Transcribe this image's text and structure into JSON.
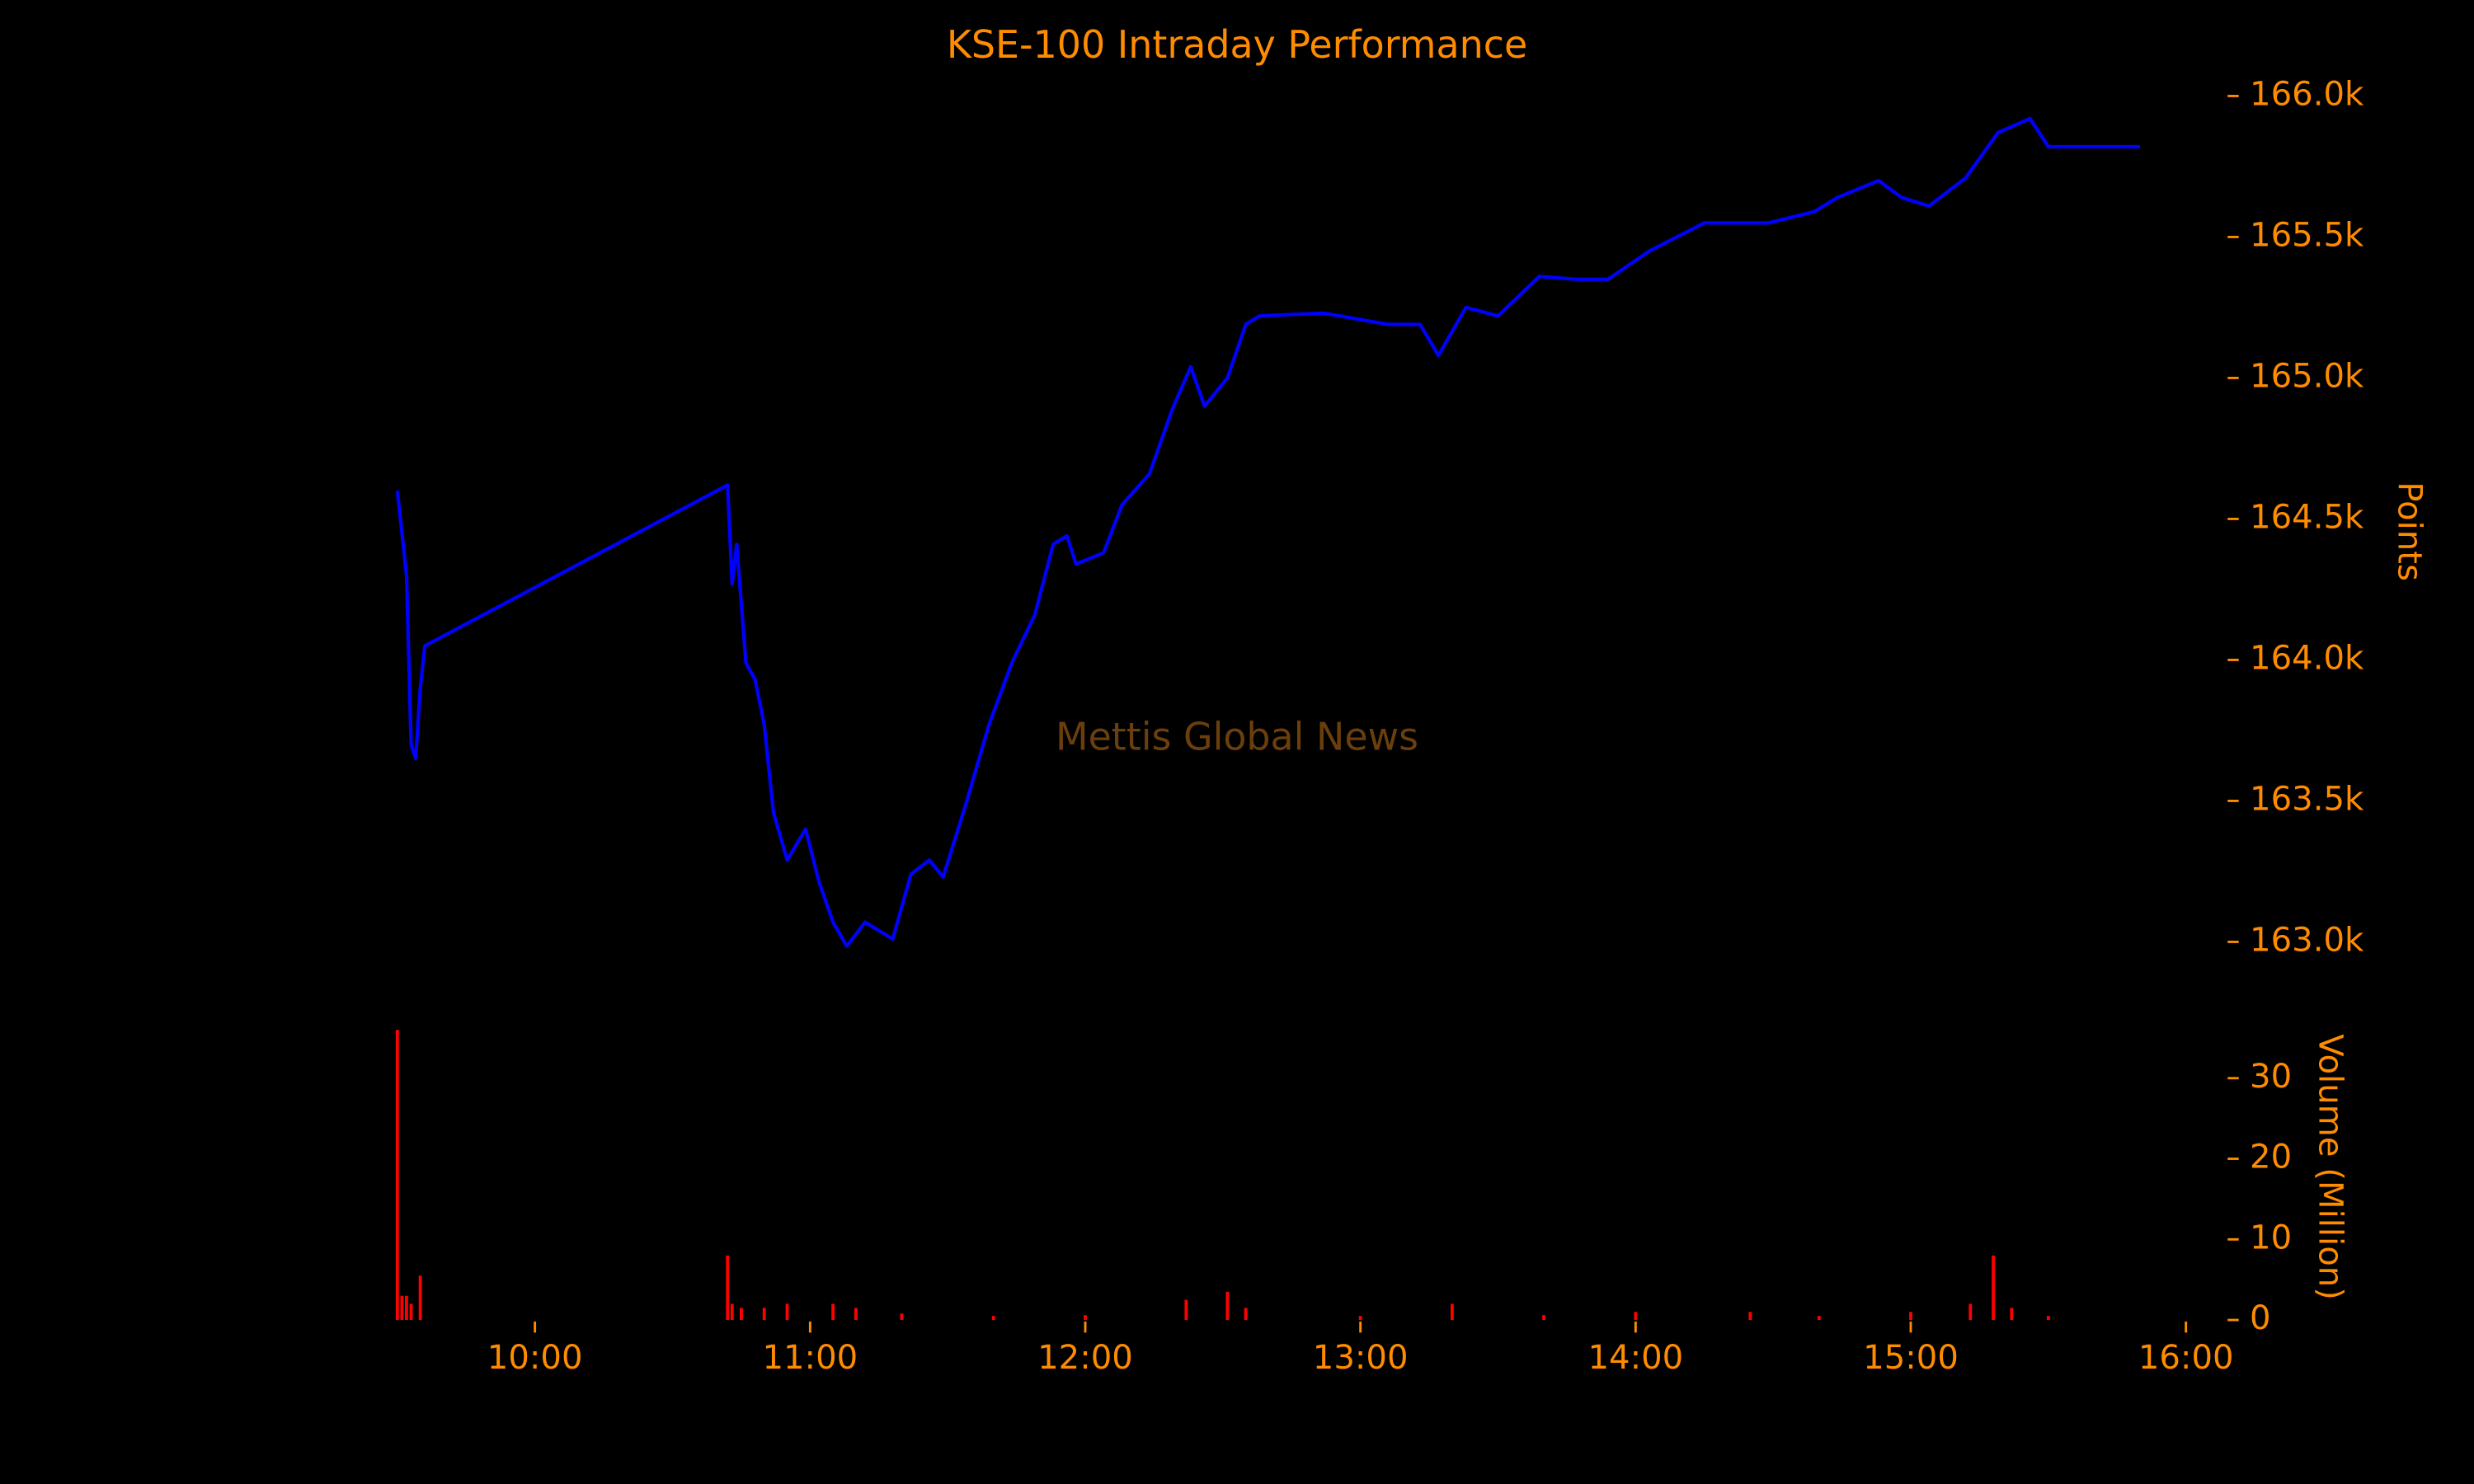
{
  "chart_data": [
    {
      "type": "line",
      "title": "KSE-100 Intraday Performance",
      "watermark": "Mettis Global News",
      "y_label": "Points",
      "x": [
        "09:30",
        "09:32",
        "09:33",
        "09:34",
        "09:35",
        "09:36",
        "10:42",
        "10:43",
        "10:44",
        "10:46",
        "10:48",
        "10:50",
        "10:52",
        "10:55",
        "10:59",
        "11:02",
        "11:05",
        "11:08",
        "11:12",
        "11:18",
        "11:22",
        "11:26",
        "11:29",
        "11:34",
        "11:39",
        "11:44",
        "11:49",
        "11:53",
        "11:56",
        "11:58",
        "12:04",
        "12:08",
        "12:14",
        "12:19",
        "12:23",
        "12:26",
        "12:31",
        "12:35",
        "12:38",
        "12:52",
        "13:06",
        "13:13",
        "13:17",
        "13:23",
        "13:30",
        "13:39",
        "13:47",
        "13:54",
        "14:03",
        "14:15",
        "14:29",
        "14:39",
        "14:44",
        "14:53",
        "14:58",
        "15:04",
        "15:12",
        "15:19",
        "15:26",
        "15:30",
        "15:50"
      ],
      "series": [
        {
          "name": "KSE-100",
          "color": "#0000ff",
          "values": [
            164600,
            164300,
            163700,
            163650,
            163900,
            164050,
            164620,
            164270,
            164410,
            163990,
            163930,
            163770,
            163460,
            163290,
            163400,
            163210,
            163070,
            162985,
            163070,
            163010,
            163240,
            163290,
            163230,
            163490,
            163770,
            163990,
            164160,
            164410,
            164440,
            164340,
            164380,
            164550,
            164660,
            164890,
            165040,
            164900,
            165000,
            165190,
            165220,
            165230,
            165190,
            165190,
            165080,
            165250,
            165220,
            165360,
            165350,
            165350,
            165450,
            165550,
            165550,
            165590,
            165640,
            165700,
            165640,
            165610,
            165710,
            165870,
            165920,
            165820,
            165820
          ]
        }
      ],
      "xlim": [
        "09:27",
        "16:06"
      ],
      "ylim": [
        162800,
        166100
      ],
      "yticks": [
        {
          "value": 163000,
          "label": "163.0k"
        },
        {
          "value": 163500,
          "label": "163.5k"
        },
        {
          "value": 164000,
          "label": "164.0k"
        },
        {
          "value": 164500,
          "label": "164.5k"
        },
        {
          "value": 165000,
          "label": "165.0k"
        },
        {
          "value": 165500,
          "label": "165.5k"
        },
        {
          "value": 166000,
          "label": "166.0k"
        }
      ]
    },
    {
      "type": "bar",
      "y_label": "Volume (Million)",
      "x": [
        "09:30",
        "09:31",
        "09:32",
        "09:33",
        "09:35",
        "10:42",
        "10:43",
        "10:45",
        "10:50",
        "10:55",
        "11:05",
        "11:10",
        "11:20",
        "11:40",
        "12:00",
        "12:22",
        "12:31",
        "12:35",
        "13:00",
        "13:20",
        "13:40",
        "14:00",
        "14:25",
        "14:40",
        "15:00",
        "15:13",
        "15:18",
        "15:22",
        "15:30"
      ],
      "series": [
        {
          "name": "Volume",
          "color": "#ff0000",
          "values": [
            36,
            3,
            3,
            2,
            5.5,
            8,
            2,
            1.5,
            1.5,
            2,
            2,
            1.5,
            0.8,
            0.5,
            0.6,
            2.5,
            3.5,
            1.5,
            0.5,
            2,
            0.6,
            1,
            1,
            0.5,
            1,
            2,
            8,
            1.5,
            0.5
          ]
        }
      ],
      "xlim": [
        "09:27",
        "16:06"
      ],
      "ylim": [
        0,
        36
      ],
      "yticks": [
        0,
        10,
        20,
        30
      ],
      "xticks": [
        "10:00",
        "11:00",
        "12:00",
        "13:00",
        "14:00",
        "15:00",
        "16:00"
      ]
    }
  ]
}
